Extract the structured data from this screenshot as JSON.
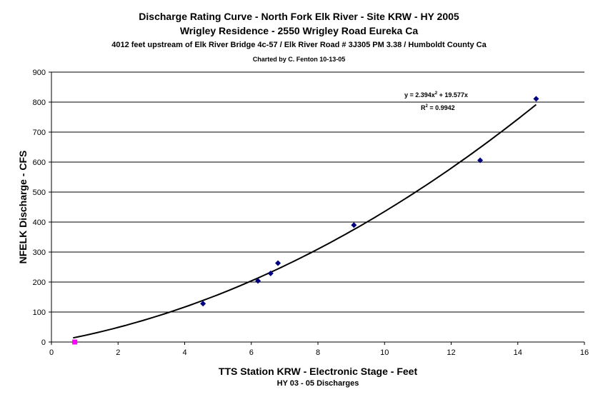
{
  "titles": {
    "line1": "Discharge Rating Curve - North Fork Elk River - Site KRW - HY 2005",
    "line2": "Wrigley Residence - 2550 Wrigley Road Eureka Ca",
    "line3": "4012 feet upstream of Elk River Bridge 4c-57 / Elk River Road # 3J305 PM 3.38 / Humboldt County Ca",
    "line4": "Charted by C. Fenton 10-13-05"
  },
  "axes": {
    "xlabel": "TTS Station KRW - Electronic Stage - Feet",
    "xlabel2": "HY 03 - 05 Discharges",
    "ylabel": "NFELK Discharge - CFS"
  },
  "trendline": {
    "eq_prefix": "y = 2.394x",
    "eq_exp": "2",
    "eq_suffix": " + 19.577x",
    "r2_prefix": "R",
    "r2_exp": "2",
    "r2_suffix": " = 0.9942"
  },
  "chart_data": {
    "type": "scatter",
    "xlim": [
      0,
      16
    ],
    "ylim": [
      0,
      900
    ],
    "xticks": [
      0,
      2,
      4,
      6,
      8,
      10,
      12,
      14,
      16
    ],
    "yticks": [
      0,
      100,
      200,
      300,
      400,
      500,
      600,
      700,
      800,
      900
    ],
    "grid": "horizontal",
    "series": [
      {
        "color": "#000080",
        "marker": "diamond",
        "points": [
          {
            "x": 4.55,
            "y": 128
          },
          {
            "x": 6.2,
            "y": 204
          },
          {
            "x": 6.58,
            "y": 229
          },
          {
            "x": 6.8,
            "y": 263
          },
          {
            "x": 9.08,
            "y": 390
          },
          {
            "x": 12.87,
            "y": 606
          },
          {
            "x": 14.55,
            "y": 811
          }
        ]
      },
      {
        "color": "#ff00ff",
        "marker": "square",
        "points": [
          {
            "x": 0.7,
            "y": 0
          }
        ]
      }
    ],
    "fit": {
      "type": "polynomial",
      "a": 2.394,
      "b": 19.577,
      "c": 0,
      "x_range": [
        0.65,
        14.55
      ],
      "color": "#000000"
    }
  }
}
